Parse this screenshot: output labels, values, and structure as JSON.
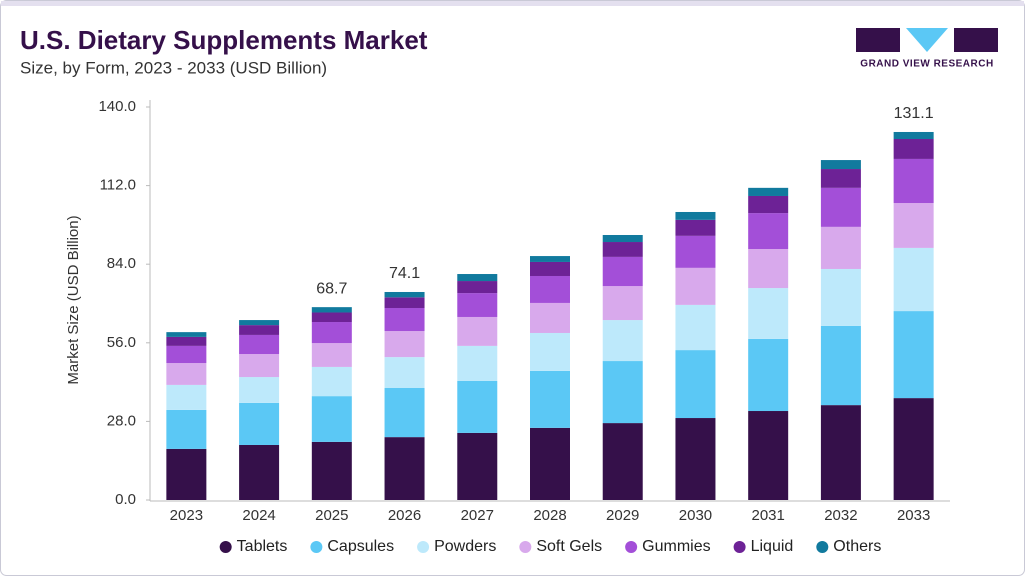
{
  "brand": "GRAND VIEW RESEARCH",
  "chart_data": {
    "type": "stacked_bar",
    "title": "U.S. Dietary Supplements Market",
    "subtitle": "Size, by Form, 2023 - 2033 (USD Billion)",
    "y_label": "Market Size (USD Billion)",
    "categories": [
      "2023",
      "2024",
      "2025",
      "2026",
      "2027",
      "2028",
      "2029",
      "2030",
      "2031",
      "2032",
      "2033"
    ],
    "series": [
      {
        "name": "Tablets",
        "color": "#35104a",
        "values": [
          18.2,
          19.6,
          20.7,
          22.4,
          23.9,
          25.7,
          27.4,
          29.2,
          31.7,
          33.8,
          36.3
        ]
      },
      {
        "name": "Capsules",
        "color": "#5bc8f5",
        "values": [
          13.9,
          15.0,
          16.3,
          17.5,
          18.5,
          20.3,
          22.1,
          24.2,
          25.7,
          28.2,
          31.0
        ]
      },
      {
        "name": "Powders",
        "color": "#bde9fb",
        "values": [
          8.9,
          9.2,
          10.4,
          11.0,
          12.5,
          13.5,
          14.6,
          16.1,
          18.1,
          20.3,
          22.5
        ]
      },
      {
        "name": "Soft Gels",
        "color": "#d8a9ec",
        "values": [
          7.8,
          8.2,
          8.5,
          9.3,
          10.3,
          10.7,
          12.1,
          13.2,
          13.9,
          15.0,
          16.0
        ]
      },
      {
        "name": "Gummies",
        "color": "#a34fd8",
        "values": [
          6.1,
          6.8,
          7.5,
          8.2,
          8.5,
          9.6,
          10.4,
          11.4,
          12.8,
          13.9,
          15.7
        ]
      },
      {
        "name": "Liquid",
        "color": "#6d2296",
        "values": [
          3.2,
          3.5,
          3.4,
          3.8,
          4.3,
          5.0,
          5.3,
          5.7,
          6.1,
          6.7,
          7.1
        ]
      },
      {
        "name": "Others",
        "color": "#117a9e",
        "values": [
          1.7,
          1.8,
          1.9,
          1.9,
          2.5,
          2.1,
          2.5,
          2.8,
          2.9,
          3.2,
          2.5
        ]
      }
    ],
    "annotations": [
      {
        "x": "2025",
        "value": 68.7
      },
      {
        "x": "2026",
        "value": 74.1
      },
      {
        "x": "2033",
        "value": 131.1
      }
    ],
    "ylim": [
      0,
      140
    ],
    "yticks": [
      {
        "value": 0,
        "label": "0.0"
      },
      {
        "value": 28,
        "label": "28.0"
      },
      {
        "value": 56,
        "label": "56.0"
      },
      {
        "value": 84,
        "label": "84.0"
      },
      {
        "value": 112,
        "label": "112.0"
      },
      {
        "value": 140,
        "label": "140.0"
      }
    ],
    "grid": false,
    "legend": "bottom"
  }
}
